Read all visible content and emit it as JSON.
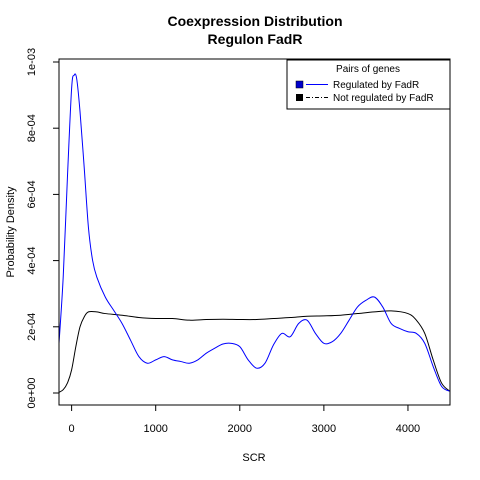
{
  "chart_data": {
    "type": "line",
    "title": "Coexpression Distribution",
    "subtitle": "Regulon FadR",
    "xlabel": "SCR",
    "ylabel": "Probability Density",
    "xlim": [
      -150,
      4500
    ],
    "ylim": [
      0,
      0.001
    ],
    "x_ticks": [
      0,
      1000,
      2000,
      3000,
      4000
    ],
    "x_tick_labels": [
      "0",
      "1000",
      "2000",
      "3000",
      "4000"
    ],
    "y_ticks": [
      0,
      0.0002,
      0.0004,
      0.0006,
      0.0008,
      0.001
    ],
    "y_tick_labels": [
      "0e+00",
      "2e-04",
      "4e-04",
      "6e-04",
      "8e-04",
      "1e-03"
    ],
    "grid": false,
    "legend": {
      "title": "Pairs of genes",
      "placement": "top-right",
      "entries": [
        "Regulated by FadR",
        "Not regulated by FadR"
      ]
    },
    "series": [
      {
        "name": "Regulated by FadR",
        "color": "#0000ff",
        "line_style": "solid",
        "x": [
          -150,
          -100,
          -50,
          0,
          30,
          60,
          100,
          150,
          200,
          250,
          300,
          400,
          500,
          600,
          700,
          800,
          900,
          1000,
          1100,
          1200,
          1300,
          1400,
          1500,
          1600,
          1700,
          1800,
          1900,
          2000,
          2100,
          2200,
          2300,
          2400,
          2500,
          2600,
          2700,
          2800,
          2900,
          3000,
          3100,
          3200,
          3300,
          3400,
          3500,
          3600,
          3700,
          3800,
          3900,
          4000,
          4100,
          4200,
          4300,
          4400,
          4500
        ],
        "y": [
          0.00015,
          0.00035,
          0.00065,
          0.00092,
          0.00096,
          0.00095,
          0.00085,
          0.00068,
          0.0005,
          0.0004,
          0.00035,
          0.00029,
          0.00025,
          0.00021,
          0.00016,
          0.00011,
          9e-05,
          0.0001,
          0.00011,
          0.0001,
          9.5e-05,
          9e-05,
          0.0001,
          0.00012,
          0.000135,
          0.000148,
          0.00015,
          0.00014,
          0.0001,
          7.5e-05,
          9e-05,
          0.000145,
          0.00018,
          0.00017,
          0.00021,
          0.00022,
          0.00018,
          0.00015,
          0.000155,
          0.00018,
          0.00022,
          0.00026,
          0.00028,
          0.00029,
          0.00026,
          0.00021,
          0.000195,
          0.000185,
          0.00018,
          0.00015,
          8e-05,
          2e-05,
          5e-06
        ]
      },
      {
        "name": "Not regulated by FadR",
        "color": "#000000",
        "line_style": "solid",
        "x": [
          -150,
          -100,
          -50,
          0,
          50,
          100,
          150,
          200,
          300,
          400,
          600,
          800,
          1000,
          1200,
          1400,
          1600,
          1800,
          2000,
          2200,
          2400,
          2600,
          2800,
          3000,
          3200,
          3400,
          3600,
          3800,
          4000,
          4100,
          4200,
          4300,
          4400,
          4500
        ],
        "y": [
          2e-06,
          1e-05,
          3e-05,
          7e-05,
          0.00014,
          0.0002,
          0.00023,
          0.000245,
          0.000245,
          0.00024,
          0.000235,
          0.000228,
          0.000225,
          0.000225,
          0.00022,
          0.000222,
          0.000223,
          0.000222,
          0.000222,
          0.000225,
          0.000228,
          0.000232,
          0.000233,
          0.000235,
          0.00024,
          0.000245,
          0.000248,
          0.00024,
          0.00022,
          0.00018,
          0.0001,
          3e-05,
          5e-06
        ]
      }
    ]
  }
}
